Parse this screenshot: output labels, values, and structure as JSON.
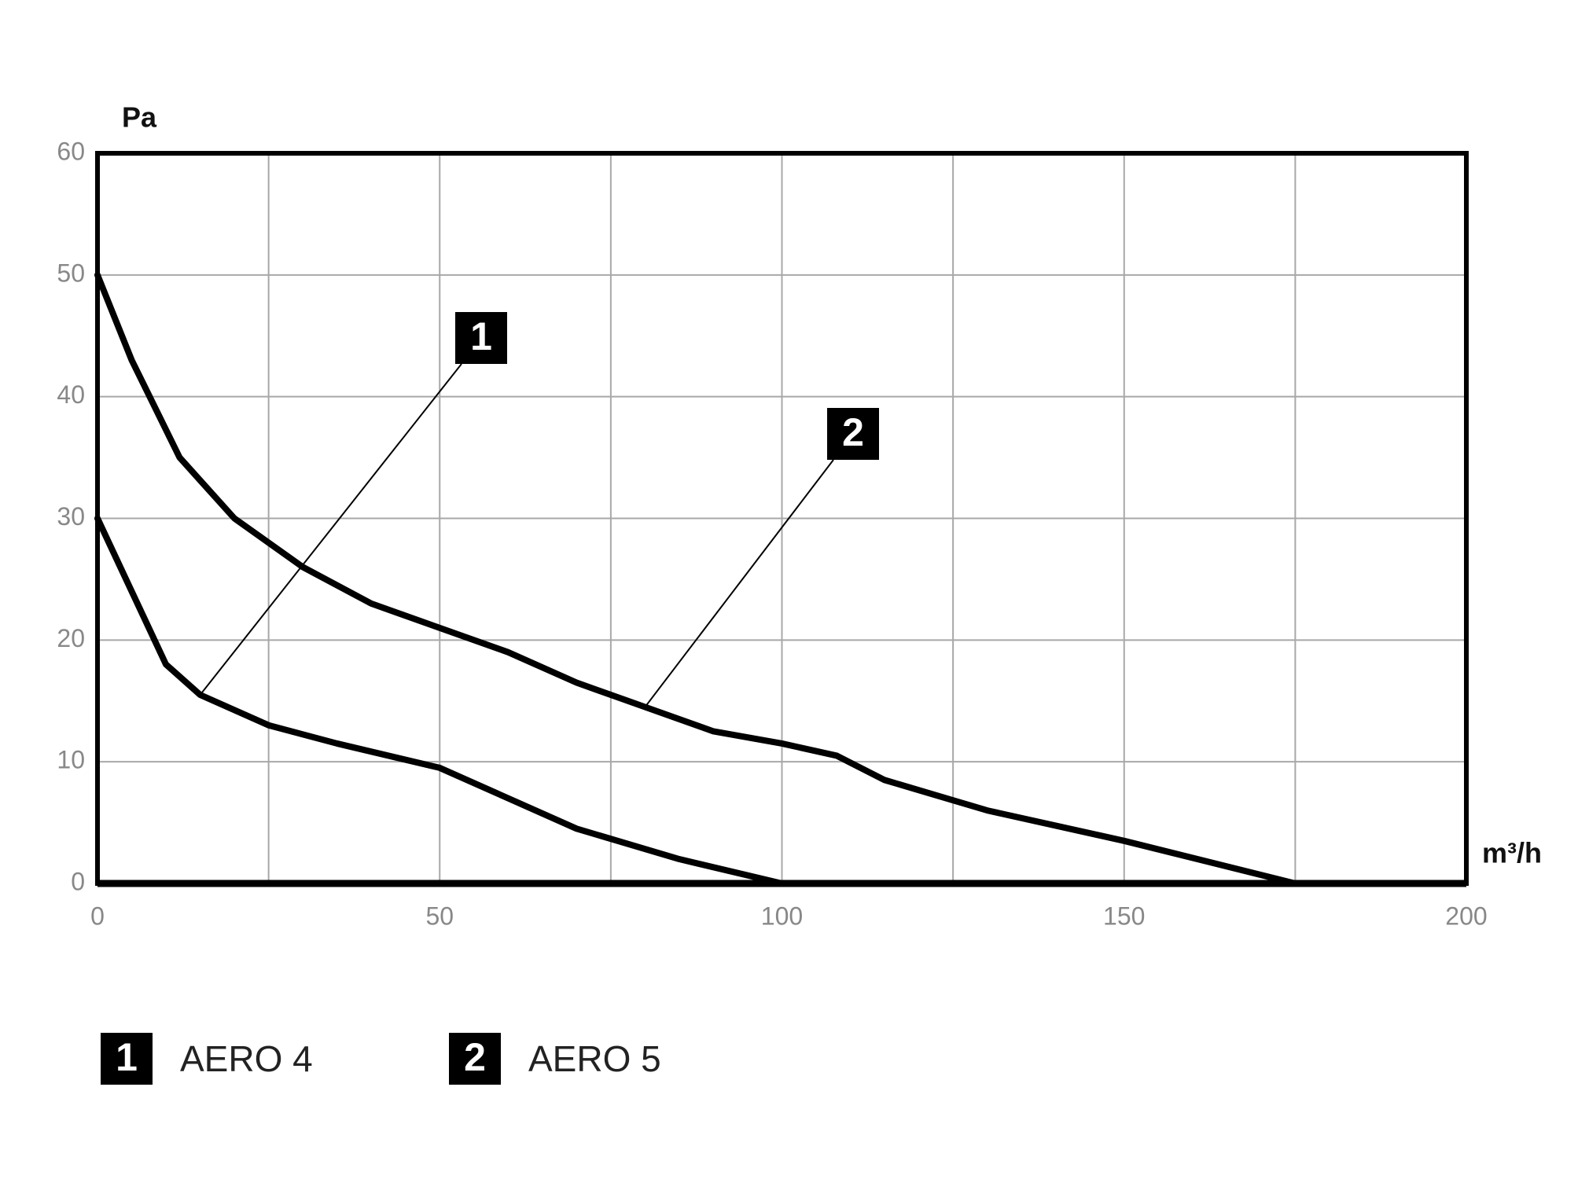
{
  "chart_data": {
    "type": "line",
    "y_label": "Pa",
    "x_label": "m³/h",
    "xlim": [
      0,
      200
    ],
    "xticks": [
      0,
      50,
      100,
      150,
      200
    ],
    "ylim": [
      0,
      60
    ],
    "yticks": [
      0,
      10,
      20,
      30,
      40,
      50,
      60
    ],
    "grid": true,
    "series": [
      {
        "name": "AERO 4",
        "marker": "1",
        "color": "#000000",
        "x": [
          0,
          5,
          10,
          15,
          25,
          35,
          50,
          60,
          70,
          85,
          100
        ],
        "values": [
          30,
          24,
          18,
          15.5,
          13,
          11.5,
          9.5,
          7,
          4.5,
          2,
          0
        ]
      },
      {
        "name": "AERO 5",
        "marker": "2",
        "color": "#000000",
        "x": [
          0,
          5,
          12,
          20,
          30,
          40,
          50,
          60,
          70,
          80,
          90,
          100,
          108,
          115,
          130,
          150,
          175
        ],
        "values": [
          50,
          43,
          35,
          30,
          26,
          23,
          21,
          19,
          16.5,
          14.5,
          12.5,
          11.5,
          10.5,
          8.5,
          6,
          3.5,
          0
        ]
      }
    ]
  }
}
